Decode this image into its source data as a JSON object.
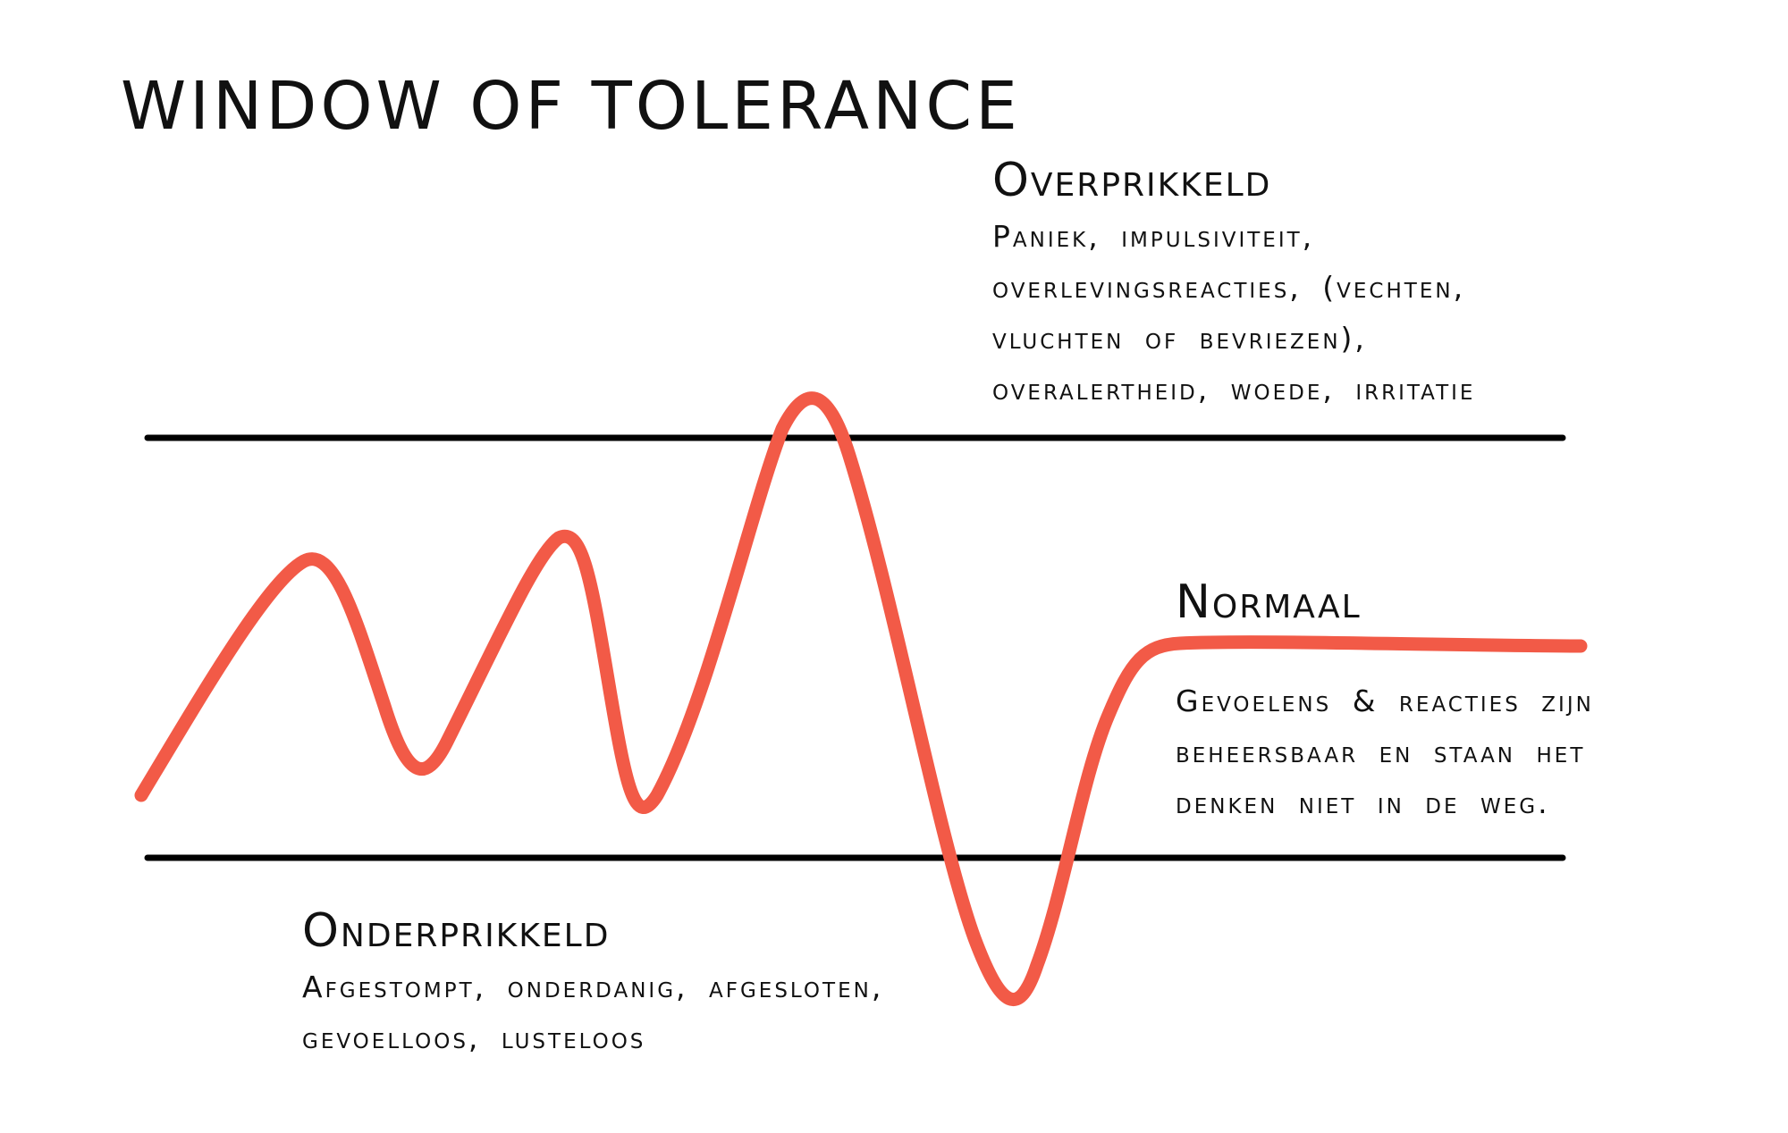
{
  "title": "WINDOW OF TOLERANCE",
  "colors": {
    "curve": "#f25a47",
    "threshold_line": "#000000",
    "background": "#ffffff",
    "text": "#111111"
  },
  "zones": {
    "over": {
      "heading": "Overprikkeld",
      "lines": [
        "Paniek, impulsiviteit,",
        "overlevingsreacties, (vechten,",
        "vluchten of bevriezen),",
        "overalertheid, woede, irritatie"
      ]
    },
    "normal": {
      "heading": "Normaal",
      "lines": [
        "Gevoelens & reacties zijn",
        "beheersbaar en staan het",
        "denken niet in de weg."
      ]
    },
    "under": {
      "heading": "Onderprikkeld",
      "lines": [
        "Afgestompt, onderdanig, afgesloten,",
        "gevoelloos, lusteloos"
      ]
    }
  }
}
